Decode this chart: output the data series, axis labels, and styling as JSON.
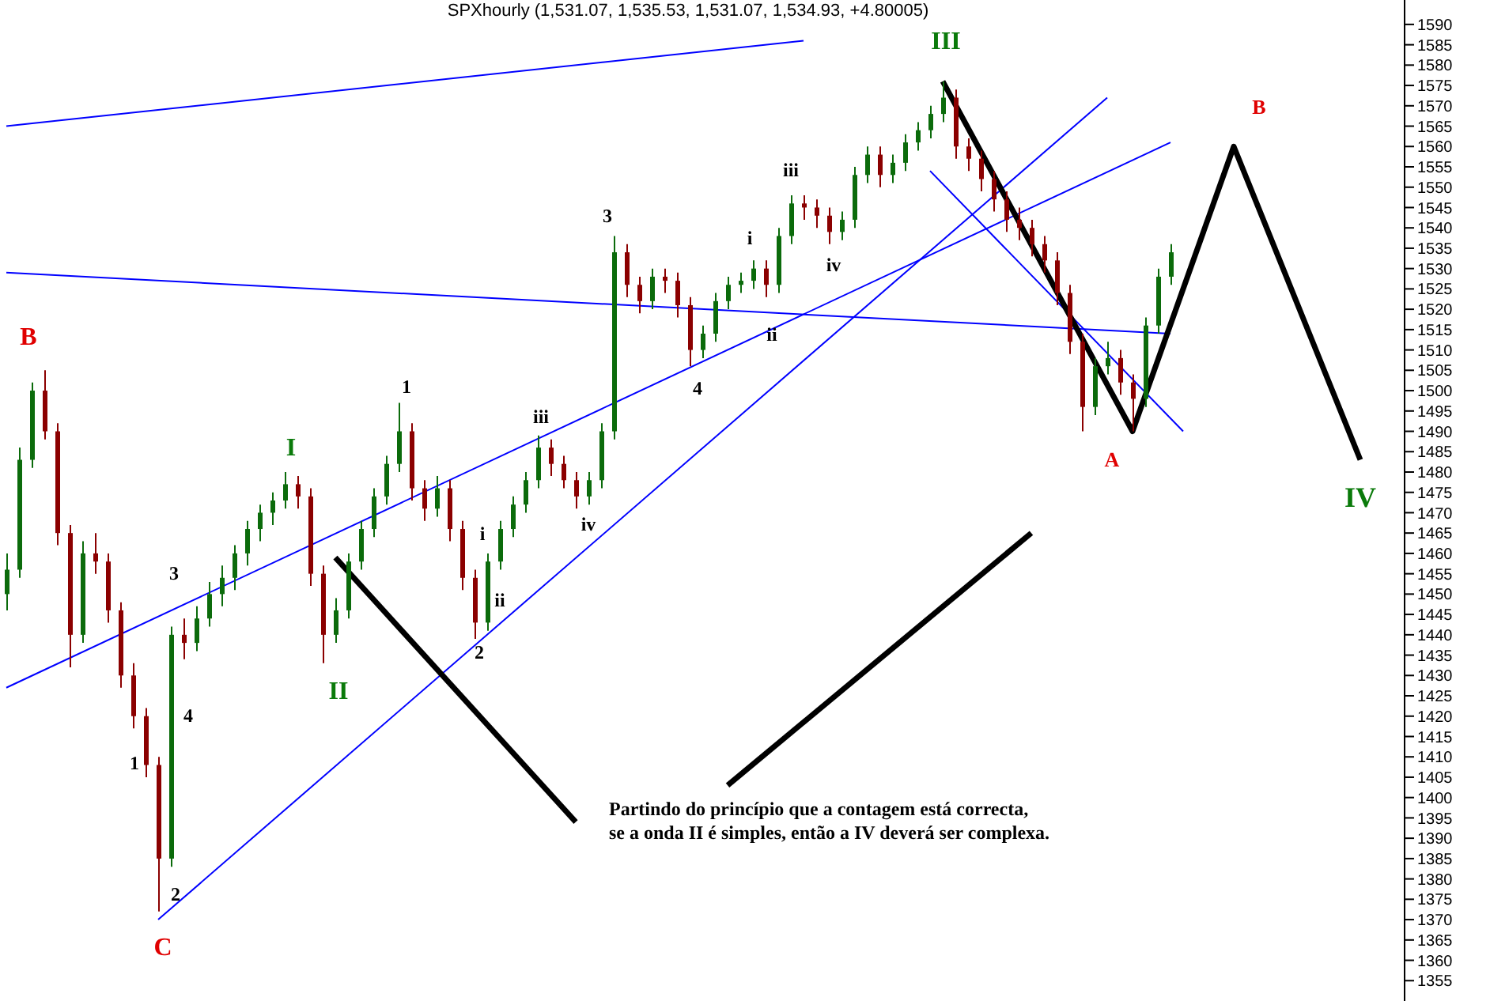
{
  "chart_data": {
    "type": "candlestick",
    "title": "SPXhourly (1,531.07, 1,535.53, 1,531.07, 1,534.93, +4.80005)",
    "categories": [
      null,
      null,
      null,
      null,
      null,
      null,
      null,
      null,
      null,
      null,
      null,
      null,
      null,
      null,
      null,
      null,
      null,
      null,
      null,
      null,
      null,
      null,
      null,
      null,
      null,
      null,
      null,
      null,
      null,
      null,
      null,
      null,
      null,
      null,
      null,
      null,
      null,
      null,
      null,
      null,
      null,
      null,
      null,
      null,
      null,
      null,
      null,
      null,
      null,
      null,
      null,
      null,
      null,
      null,
      null,
      null,
      null,
      null,
      null,
      null,
      null,
      null,
      null,
      null,
      null,
      null,
      null,
      null,
      null,
      null,
      null,
      null,
      null,
      null,
      null,
      null,
      null,
      null,
      null,
      null,
      null,
      null,
      null,
      null,
      null,
      null,
      null,
      null,
      null,
      null,
      null,
      null,
      null,
      null,
      null,
      null,
      null,
      null,
      null,
      null,
      null,
      null,
      null,
      null,
      null,
      null,
      null,
      null,
      null,
      null,
      null
    ],
    "ohlc": [
      [
        1450,
        1460,
        1446,
        1456
      ],
      [
        1456,
        1486,
        1454,
        1483
      ],
      [
        1483,
        1502,
        1481,
        1500
      ],
      [
        1500,
        1505,
        1488,
        1490
      ],
      [
        1490,
        1492,
        1462,
        1465
      ],
      [
        1465,
        1467,
        1432,
        1440
      ],
      [
        1440,
        1463,
        1438,
        1460
      ],
      [
        1460,
        1465,
        1455,
        1458
      ],
      [
        1458,
        1460,
        1443,
        1446
      ],
      [
        1446,
        1448,
        1427,
        1430
      ],
      [
        1430,
        1433,
        1417,
        1420
      ],
      [
        1420,
        1422,
        1405,
        1408
      ],
      [
        1408,
        1410,
        1372,
        1385
      ],
      [
        1385,
        1442,
        1383,
        1440
      ],
      [
        1440,
        1444,
        1434,
        1438
      ],
      [
        1438,
        1447,
        1436,
        1444
      ],
      [
        1444,
        1453,
        1442,
        1450
      ],
      [
        1450,
        1457,
        1447,
        1454
      ],
      [
        1454,
        1462,
        1451,
        1460
      ],
      [
        1460,
        1468,
        1457,
        1466
      ],
      [
        1466,
        1472,
        1463,
        1470
      ],
      [
        1470,
        1475,
        1467,
        1473
      ],
      [
        1473,
        1480,
        1471,
        1477
      ],
      [
        1477,
        1479,
        1471,
        1474
      ],
      [
        1474,
        1476,
        1452,
        1455
      ],
      [
        1455,
        1457,
        1433,
        1440
      ],
      [
        1440,
        1449,
        1438,
        1446
      ],
      [
        1446,
        1460,
        1444,
        1458
      ],
      [
        1458,
        1468,
        1456,
        1466
      ],
      [
        1466,
        1476,
        1464,
        1474
      ],
      [
        1474,
        1484,
        1472,
        1482
      ],
      [
        1482,
        1497,
        1480,
        1490
      ],
      [
        1490,
        1492,
        1473,
        1476
      ],
      [
        1476,
        1478,
        1468,
        1471
      ],
      [
        1471,
        1479,
        1469,
        1476
      ],
      [
        1476,
        1478,
        1463,
        1466
      ],
      [
        1466,
        1468,
        1451,
        1454
      ],
      [
        1454,
        1456,
        1439,
        1443
      ],
      [
        1443,
        1460,
        1441,
        1458
      ],
      [
        1458,
        1468,
        1456,
        1466
      ],
      [
        1466,
        1474,
        1464,
        1472
      ],
      [
        1472,
        1480,
        1470,
        1478
      ],
      [
        1478,
        1489,
        1476,
        1486
      ],
      [
        1486,
        1488,
        1479,
        1482
      ],
      [
        1482,
        1484,
        1476,
        1478
      ],
      [
        1478,
        1480,
        1471,
        1474
      ],
      [
        1474,
        1480,
        1472,
        1478
      ],
      [
        1478,
        1492,
        1476,
        1490
      ],
      [
        1490,
        1538,
        1488,
        1534
      ],
      [
        1534,
        1536,
        1523,
        1526
      ],
      [
        1526,
        1528,
        1519,
        1522
      ],
      [
        1522,
        1530,
        1520,
        1528
      ],
      [
        1528,
        1530,
        1524,
        1527
      ],
      [
        1527,
        1529,
        1518,
        1521
      ],
      [
        1521,
        1523,
        1506,
        1510
      ],
      [
        1510,
        1516,
        1508,
        1514
      ],
      [
        1514,
        1524,
        1512,
        1522
      ],
      [
        1522,
        1528,
        1520,
        1526
      ],
      [
        1526,
        1529,
        1524,
        1527
      ],
      [
        1527,
        1532,
        1525,
        1530
      ],
      [
        1530,
        1532,
        1523,
        1526
      ],
      [
        1526,
        1540,
        1524,
        1538
      ],
      [
        1538,
        1548,
        1536,
        1546
      ],
      [
        1546,
        1548,
        1542,
        1545
      ],
      [
        1545,
        1547,
        1540,
        1543
      ],
      [
        1543,
        1545,
        1536,
        1539
      ],
      [
        1539,
        1544,
        1537,
        1542
      ],
      [
        1542,
        1555,
        1540,
        1553
      ],
      [
        1553,
        1560,
        1551,
        1558
      ],
      [
        1558,
        1560,
        1550,
        1553
      ],
      [
        1553,
        1558,
        1551,
        1556
      ],
      [
        1556,
        1563,
        1554,
        1561
      ],
      [
        1561,
        1566,
        1559,
        1564
      ],
      [
        1564,
        1570,
        1562,
        1568
      ],
      [
        1568,
        1576,
        1566,
        1572
      ],
      [
        1572,
        1574,
        1557,
        1560
      ],
      [
        1560,
        1562,
        1554,
        1557
      ],
      [
        1557,
        1559,
        1549,
        1552
      ],
      [
        1552,
        1554,
        1544,
        1547
      ],
      [
        1547,
        1549,
        1539,
        1542
      ],
      [
        1542,
        1545,
        1537,
        1540
      ],
      [
        1540,
        1542,
        1533,
        1536
      ],
      [
        1536,
        1538,
        1529,
        1532
      ],
      [
        1532,
        1534,
        1521,
        1524
      ],
      [
        1524,
        1526,
        1509,
        1512
      ],
      [
        1512,
        1514,
        1490,
        1496
      ],
      [
        1496,
        1508,
        1494,
        1506
      ],
      [
        1506,
        1512,
        1504,
        1508
      ],
      [
        1508,
        1510,
        1499,
        1502
      ],
      [
        1502,
        1504,
        1490,
        1498
      ],
      [
        1498,
        1518,
        1496,
        1516
      ],
      [
        1516,
        1530,
        1514,
        1528
      ],
      [
        1528,
        1536,
        1526,
        1534
      ],
      null,
      null,
      null,
      null,
      null,
      null,
      null,
      null,
      null,
      null,
      null,
      null,
      null,
      null,
      null,
      null,
      null,
      null
    ],
    "series": [
      {
        "type": "line",
        "color": "#0000ff",
        "values": [
          1565,
          null,
          null,
          null,
          null,
          null,
          null,
          null,
          null,
          null,
          null,
          null,
          null,
          null,
          null,
          null,
          null,
          null,
          null,
          null,
          null,
          null,
          null,
          null,
          null,
          null,
          null,
          null,
          null,
          null,
          null,
          null,
          null,
          null,
          null,
          null,
          null,
          null,
          null,
          null,
          null,
          null,
          null,
          null,
          null,
          null,
          null,
          null,
          null,
          null,
          null,
          null,
          null,
          null,
          null,
          null,
          null,
          null,
          null,
          null,
          null,
          null,
          null,
          1586,
          null,
          null,
          null,
          null,
          null,
          null,
          null,
          null,
          null,
          null,
          null,
          null,
          null,
          null,
          null,
          null,
          null,
          null,
          null,
          null,
          null,
          null,
          null,
          null,
          null,
          null,
          null,
          null,
          null,
          null,
          null,
          null,
          null,
          null,
          null,
          null,
          null,
          null,
          null,
          null,
          null,
          null,
          null,
          null,
          null,
          null,
          null
        ]
      },
      {
        "type": "line",
        "color": "#0000ff",
        "values": [
          1529,
          null,
          null,
          null,
          null,
          null,
          null,
          null,
          null,
          null,
          null,
          null,
          null,
          null,
          null,
          null,
          null,
          null,
          null,
          null,
          null,
          null,
          null,
          null,
          null,
          null,
          null,
          null,
          null,
          null,
          null,
          null,
          null,
          null,
          null,
          null,
          null,
          null,
          null,
          null,
          null,
          null,
          null,
          null,
          null,
          null,
          null,
          null,
          null,
          null,
          null,
          null,
          null,
          null,
          null,
          null,
          null,
          null,
          null,
          null,
          null,
          null,
          null,
          null,
          null,
          null,
          null,
          null,
          null,
          null,
          null,
          null,
          null,
          null,
          null,
          null,
          null,
          null,
          null,
          null,
          null,
          null,
          null,
          null,
          null,
          null,
          null,
          null,
          null,
          null,
          null,
          null,
          1514,
          null,
          null,
          null,
          null,
          null,
          null,
          null,
          null,
          null,
          null,
          null,
          null,
          null,
          null,
          null,
          null,
          null,
          null
        ]
      },
      {
        "type": "line",
        "color": "#0000ff",
        "values": [
          1427,
          null,
          null,
          null,
          null,
          null,
          null,
          null,
          null,
          null,
          null,
          null,
          null,
          null,
          null,
          null,
          null,
          null,
          null,
          null,
          null,
          null,
          null,
          null,
          null,
          null,
          null,
          null,
          null,
          null,
          null,
          null,
          null,
          null,
          null,
          null,
          null,
          null,
          null,
          null,
          null,
          null,
          null,
          null,
          null,
          null,
          null,
          null,
          null,
          null,
          null,
          null,
          null,
          null,
          null,
          null,
          null,
          null,
          null,
          null,
          null,
          null,
          null,
          null,
          null,
          null,
          null,
          null,
          null,
          null,
          null,
          null,
          null,
          null,
          null,
          null,
          null,
          null,
          null,
          null,
          null,
          null,
          null,
          null,
          null,
          null,
          null,
          null,
          null,
          null,
          null,
          null,
          1561,
          null,
          null,
          null,
          null,
          null,
          null,
          null,
          null,
          null,
          null,
          null,
          null,
          null,
          null,
          null,
          null,
          null,
          null
        ]
      },
      {
        "type": "line",
        "color": "#0000ff",
        "values": [
          null,
          null,
          null,
          null,
          null,
          null,
          null,
          null,
          null,
          null,
          null,
          null,
          1370,
          null,
          null,
          null,
          null,
          null,
          null,
          null,
          null,
          null,
          null,
          null,
          null,
          null,
          null,
          null,
          null,
          null,
          null,
          null,
          null,
          null,
          null,
          null,
          null,
          null,
          null,
          null,
          null,
          null,
          null,
          null,
          null,
          null,
          null,
          null,
          null,
          null,
          null,
          null,
          null,
          null,
          null,
          null,
          null,
          null,
          null,
          null,
          null,
          null,
          null,
          null,
          null,
          null,
          null,
          null,
          null,
          null,
          null,
          null,
          null,
          null,
          null,
          null,
          null,
          null,
          null,
          null,
          null,
          null,
          null,
          null,
          null,
          null,
          null,
          1572,
          null,
          null,
          null,
          null,
          null,
          null,
          null,
          null,
          null,
          null,
          null,
          null,
          null,
          null,
          null,
          null,
          null,
          null,
          null,
          null,
          null,
          null,
          null
        ]
      },
      {
        "type": "line",
        "color": "#0000ff",
        "values": [
          null,
          null,
          null,
          null,
          null,
          null,
          null,
          null,
          null,
          null,
          null,
          null,
          null,
          null,
          null,
          null,
          null,
          null,
          null,
          null,
          null,
          null,
          null,
          null,
          null,
          null,
          null,
          null,
          null,
          null,
          null,
          null,
          null,
          null,
          null,
          null,
          null,
          null,
          null,
          null,
          null,
          null,
          null,
          null,
          null,
          null,
          null,
          null,
          null,
          null,
          null,
          null,
          null,
          null,
          null,
          null,
          null,
          null,
          null,
          null,
          null,
          null,
          null,
          null,
          null,
          null,
          null,
          null,
          null,
          null,
          null,
          null,
          null,
          1554,
          null,
          null,
          null,
          null,
          null,
          null,
          null,
          null,
          null,
          null,
          null,
          null,
          null,
          null,
          null,
          null,
          null,
          null,
          null,
          1490,
          null,
          null,
          null,
          null,
          null,
          null,
          null,
          null,
          null,
          null,
          null,
          null,
          null,
          null,
          null,
          null,
          null
        ]
      },
      {
        "type": "line",
        "color": "#000000",
        "values": [
          null,
          null,
          null,
          null,
          null,
          null,
          null,
          null,
          null,
          null,
          null,
          null,
          null,
          null,
          null,
          null,
          null,
          null,
          null,
          null,
          null,
          null,
          null,
          null,
          null,
          null,
          null,
          null,
          null,
          null,
          null,
          null,
          null,
          null,
          null,
          null,
          null,
          null,
          null,
          null,
          null,
          null,
          null,
          null,
          null,
          null,
          null,
          null,
          null,
          null,
          null,
          null,
          null,
          null,
          null,
          null,
          null,
          null,
          null,
          null,
          null,
          null,
          null,
          null,
          null,
          null,
          null,
          null,
          null,
          null,
          null,
          null,
          null,
          null,
          1576,
          null,
          null,
          null,
          null,
          null,
          null,
          null,
          null,
          null,
          null,
          null,
          null,
          null,
          null,
          1490,
          null,
          null,
          null,
          null,
          null,
          null,
          null,
          1560,
          null,
          null,
          null,
          null,
          null,
          null,
          null,
          null,
          null,
          1483,
          null,
          null,
          null
        ]
      },
      {
        "type": "line",
        "color": "#000000",
        "values": [
          null,
          null,
          null,
          null,
          null,
          null,
          null,
          null,
          null,
          null,
          null,
          null,
          null,
          null,
          null,
          null,
          null,
          null,
          null,
          null,
          null,
          null,
          null,
          null,
          null,
          null,
          1459,
          null,
          null,
          null,
          null,
          null,
          null,
          null,
          null,
          null,
          null,
          null,
          null,
          null,
          null,
          null,
          null,
          null,
          null,
          1394,
          null,
          null,
          null,
          null,
          null,
          null,
          null,
          null,
          null,
          null,
          null,
          null,
          null,
          null,
          null,
          null,
          null,
          null,
          null,
          null,
          null,
          null,
          null,
          null,
          null,
          null,
          null,
          null,
          null,
          null,
          null,
          null,
          null,
          null,
          null,
          null,
          null,
          null,
          null,
          null,
          null,
          null,
          null,
          null,
          null,
          null,
          null,
          null,
          null,
          null,
          null,
          null,
          null,
          null,
          null,
          null,
          null,
          null,
          null,
          null,
          null,
          null,
          null,
          null,
          null
        ]
      },
      {
        "type": "line",
        "color": "#000000",
        "values": [
          null,
          null,
          null,
          null,
          null,
          null,
          null,
          null,
          null,
          null,
          null,
          null,
          null,
          null,
          null,
          null,
          null,
          null,
          null,
          null,
          null,
          null,
          null,
          null,
          null,
          null,
          null,
          null,
          null,
          null,
          null,
          null,
          null,
          null,
          null,
          null,
          null,
          null,
          null,
          null,
          null,
          null,
          null,
          null,
          null,
          null,
          null,
          null,
          null,
          null,
          null,
          null,
          null,
          null,
          null,
          null,
          null,
          1403,
          null,
          null,
          null,
          null,
          null,
          null,
          null,
          null,
          null,
          null,
          null,
          null,
          null,
          null,
          null,
          null,
          null,
          null,
          null,
          null,
          null,
          null,
          null,
          1465,
          null,
          null,
          null,
          null,
          null,
          null,
          null,
          null,
          null,
          null,
          null,
          null,
          null,
          null,
          null,
          null,
          null,
          null,
          null,
          null,
          null,
          null,
          null,
          null,
          null,
          null,
          null,
          null,
          null
        ]
      }
    ],
    "annotations": [
      "B",
      "C",
      "3",
      "4",
      "1",
      "2",
      "I",
      "II",
      "1",
      "i",
      "ii",
      "2",
      "iii",
      "iv",
      "3",
      "4",
      "i",
      "ii",
      "iii",
      "iv",
      "III",
      "B",
      "A",
      "IV",
      "Partindo do princípio que a contagem está correcta,",
      "se a onda II é simples, então a IV deverá ser complexa."
    ],
    "ylim": [
      1350,
      1596
    ],
    "yticks": [
      1355,
      1360,
      1365,
      1370,
      1375,
      1380,
      1385,
      1390,
      1395,
      1400,
      1405,
      1410,
      1415,
      1420,
      1425,
      1430,
      1435,
      1440,
      1445,
      1450,
      1455,
      1460,
      1465,
      1470,
      1475,
      1480,
      1485,
      1490,
      1495,
      1500,
      1505,
      1510,
      1515,
      1520,
      1525,
      1530,
      1535,
      1540,
      1545,
      1550,
      1555,
      1560,
      1565,
      1570,
      1575,
      1580,
      1585,
      1590
    ],
    "tick_labels": "y"
  }
}
